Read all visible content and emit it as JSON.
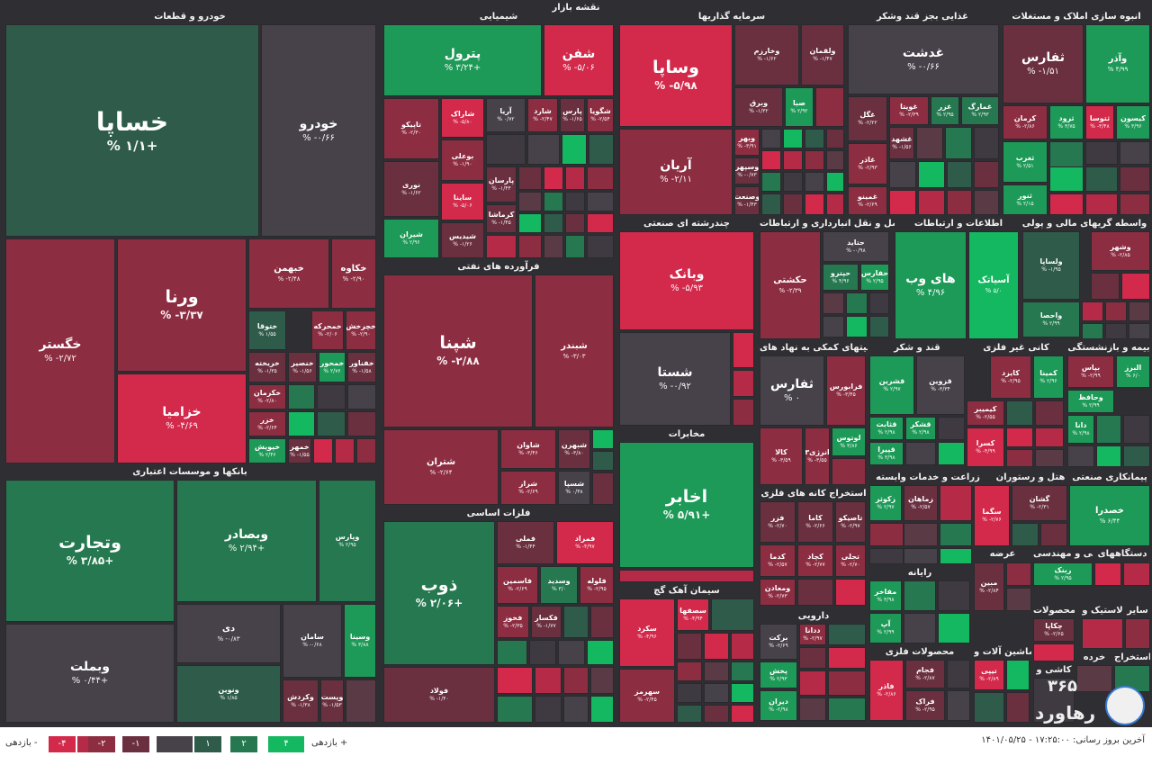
{
  "title": "نقشه بازار",
  "colors": {
    "neg4": "#d3294b",
    "neg3": "#b52a46",
    "neg2": "#8d2d42",
    "neg1": "#6a3040",
    "zero": "#47424a",
    "pos1": "#2f5c4a",
    "pos2": "#25784f",
    "pos3": "#1e9a58",
    "pos4": "#14b860",
    "background": "#2f2f33"
  },
  "sectors": [
    "خودرو و قطعات",
    "شیمیایی",
    "سرمایه گذاریها",
    "غذایی بجز قند وشکر",
    "انبوه سازی املاک و مستغلات",
    "فرآورده های نفتی",
    "چندرشته ای صنعتی",
    "حمل و نقل انبارداری و ارتباطات",
    "اطلاعات و ارتباطات",
    "واسطه گریهای مالی و پولی",
    "بانکها و موسسات اعتباری",
    "فلزات اساسی",
    "مخابرات",
    "فعالیتهای کمکی به نهاد های",
    "قند و شکر",
    "کانی غیر فلزی",
    "بیمه و بازنشستگی",
    "سیمان آهک گچ",
    "استخراج کانه های فلزی",
    "زراعت و خدمات وابسته",
    "هتل و رستوران",
    "پیمانکاری صنعتی",
    "عرضه",
    "فنی و مهندسی",
    "دستگاههای",
    "رایانه",
    "دارویی",
    "محصولات فلزی",
    "ماشین آلات و",
    "محصولات",
    "لاستیک و",
    "کاشی و",
    "خرده",
    "استخراج",
    "سایر"
  ],
  "tiles": [
    {
      "symbol": "خساپا",
      "pct": "% ۱/۱+",
      "color": "pos1"
    },
    {
      "symbol": "خودرو",
      "pct": "% -۰/۶۶",
      "color": "zero"
    },
    {
      "symbol": "خگستر",
      "pct": "% -۲/۷۲",
      "color": "neg2"
    },
    {
      "symbol": "ورنا",
      "pct": "% -۳/۳۷",
      "color": "neg2"
    },
    {
      "symbol": "خزامیا",
      "pct": "% -۴/۶۹",
      "color": "neg4"
    },
    {
      "symbol": "خبهمن",
      "pct": "% -۲/۴۸",
      "color": "neg2"
    },
    {
      "symbol": "خکاوه",
      "pct": "% -۲/۹۰",
      "color": "neg2"
    },
    {
      "symbol": "ختوقا",
      "pct": "% ۱/۵۵",
      "color": "pos1"
    },
    {
      "symbol": "خمحرکه",
      "pct": "% -۲/۰۶",
      "color": "neg2"
    },
    {
      "symbol": "خچرخش",
      "pct": "% -۲/۹۰",
      "color": "neg2"
    },
    {
      "symbol": "خریخته",
      "pct": "% -۱/۳۵",
      "color": "neg1"
    },
    {
      "symbol": "خنصیر",
      "pct": "% -۱/۵۶",
      "color": "neg1"
    },
    {
      "symbol": "خمحور",
      "pct": "% ۲/۷۶",
      "color": "pos3"
    },
    {
      "symbol": "خفناور",
      "pct": "% -۱/۵۸",
      "color": "neg1"
    },
    {
      "symbol": "خکرمان",
      "pct": "% -۲/۸۰",
      "color": "neg2"
    },
    {
      "symbol": "خزر",
      "pct": "% -۲/۶۴",
      "color": "neg2"
    },
    {
      "symbol": "خپویش",
      "pct": "% ۲/۴۶",
      "color": "pos3"
    },
    {
      "symbol": "خمهر",
      "pct": "% -۱/۵۵",
      "color": "neg1"
    },
    {
      "symbol": "پترول",
      "pct": "% ۳/۲۴+",
      "color": "pos3"
    },
    {
      "symbol": "شفن",
      "pct": "% -۵/۰۶",
      "color": "neg4"
    },
    {
      "symbol": "تاپیکو",
      "pct": "% -۲/۳۰",
      "color": "neg2"
    },
    {
      "symbol": "شاراک",
      "pct": "% -۵/۸۰",
      "color": "neg4"
    },
    {
      "symbol": "آریا",
      "pct": "% ۰/۷۲",
      "color": "zero"
    },
    {
      "symbol": "شارد",
      "pct": "% -۲/۴۷",
      "color": "neg2"
    },
    {
      "symbol": "پارس",
      "pct": "% -۱/۶۵",
      "color": "neg1"
    },
    {
      "symbol": "شگویا",
      "pct": "% -۲/۵۴",
      "color": "neg2"
    },
    {
      "symbol": "نوری",
      "pct": "% -۱/۶۲",
      "color": "neg1"
    },
    {
      "symbol": "بوعلی",
      "pct": "% -۱/۹۰",
      "color": "neg2"
    },
    {
      "symbol": "شیران",
      "pct": "% ۲/۹۶",
      "color": "pos3"
    },
    {
      "symbol": "پارسان",
      "pct": "% -۱/۴۴",
      "color": "neg1"
    },
    {
      "symbol": "ساینا",
      "pct": "% -۵/۰۶",
      "color": "neg4"
    },
    {
      "symbol": "کرماشا",
      "pct": "% -۱/۴۵",
      "color": "neg1"
    },
    {
      "symbol": "شیدیس",
      "pct": "% -۱/۲۶",
      "color": "neg1"
    },
    {
      "symbol": "وساپا",
      "pct": "% -۵/۹۸",
      "color": "neg4"
    },
    {
      "symbol": "وخارزم",
      "pct": "% -۱/۶۲",
      "color": "neg1"
    },
    {
      "symbol": "وبرق",
      "pct": "% -۱/۳۲",
      "color": "neg1"
    },
    {
      "symbol": "آریان",
      "pct": "% -۲/۱۱",
      "color": "neg2"
    },
    {
      "symbol": "صبا",
      "pct": "% ۲/۹۲",
      "color": "pos3"
    },
    {
      "symbol": "ولقمان",
      "pct": "% -۱/۴۷",
      "color": "neg1"
    },
    {
      "symbol": "وبهر",
      "pct": "% -۳/۹۱",
      "color": "neg2"
    },
    {
      "symbol": "وسپهر",
      "pct": "% -۰/۷۳",
      "color": "neg1"
    },
    {
      "symbol": "وصنعت",
      "pct": "% -۱/۴۳",
      "color": "neg1"
    },
    {
      "symbol": "غدشت",
      "pct": "% -۰/۶۶",
      "color": "zero"
    },
    {
      "symbol": "غگل",
      "pct": "% -۲/۲۲",
      "color": "neg1"
    },
    {
      "symbol": "غویتا",
      "pct": "% -۲/۳۹",
      "color": "neg2"
    },
    {
      "symbol": "غزر",
      "pct": "% ۲/۹۵",
      "color": "pos2"
    },
    {
      "symbol": "غمارگ",
      "pct": "% ۲/۹۳",
      "color": "pos2"
    },
    {
      "symbol": "غشهد",
      "pct": "% -۱/۵۶",
      "color": "neg1"
    },
    {
      "symbol": "غاذر",
      "pct": "% -۲/۹۳",
      "color": "neg2"
    },
    {
      "symbol": "غمینو",
      "pct": "% -۲/۶۹",
      "color": "neg2"
    },
    {
      "symbol": "ثفارس",
      "pct": "% -۱/۵۱",
      "color": "neg1"
    },
    {
      "symbol": "وآذر",
      "pct": "% ۴/۹۹",
      "color": "pos3"
    },
    {
      "symbol": "ثرود",
      "pct": "% ۳/۷۵",
      "color": "pos3"
    },
    {
      "symbol": "کرمان",
      "pct": "% -۲/۸۶",
      "color": "neg2"
    },
    {
      "symbol": "ثتوسا",
      "pct": "% -۳/۴۸",
      "color": "neg4"
    },
    {
      "symbol": "کیسون",
      "pct": "% ۳/۹۶",
      "color": "pos3"
    },
    {
      "symbol": "ثغرب",
      "pct": "% ۲/۵۱",
      "color": "pos3"
    },
    {
      "symbol": "ثنور",
      "pct": "% ۲/۱۵",
      "color": "pos3"
    },
    {
      "symbol": "شپنا",
      "pct": "% -۲/۸۸",
      "color": "neg2"
    },
    {
      "symbol": "شبندر",
      "pct": "% -۳/۰۳",
      "color": "neg2"
    },
    {
      "symbol": "شتران",
      "pct": "% -۲/۶۴",
      "color": "neg2"
    },
    {
      "symbol": "شاوان",
      "pct": "% -۳/۴۶",
      "color": "neg2"
    },
    {
      "symbol": "شبهرن",
      "pct": "% -۳/۸۰",
      "color": "neg1"
    },
    {
      "symbol": "شراز",
      "pct": "% -۲/۶۹",
      "color": "neg2"
    },
    {
      "symbol": "شسپا",
      "pct": "% ۰/۴۸",
      "color": "zero"
    },
    {
      "symbol": "وبانک",
      "pct": "% -۵/۹۳",
      "color": "neg4"
    },
    {
      "symbol": "شستا",
      "pct": "% -۰/۹۲",
      "color": "zero"
    },
    {
      "symbol": "حکشتی",
      "pct": "% -۲/۳۹",
      "color": "neg2"
    },
    {
      "symbol": "حتاید",
      "pct": "% -۰/۹۸",
      "color": "zero"
    },
    {
      "symbol": "حپترو",
      "pct": "% ۴/۹۶",
      "color": "pos2"
    },
    {
      "symbol": "حفارس",
      "pct": "% ۲/۹۵",
      "color": "pos3"
    },
    {
      "symbol": "های وب",
      "pct": "% ۴/۹۶",
      "color": "pos3"
    },
    {
      "symbol": "آسیاتک",
      "pct": "% ۵/۰",
      "color": "pos4"
    },
    {
      "symbol": "وشهر",
      "pct": "% -۲/۸۵",
      "color": "neg2"
    },
    {
      "symbol": "ولساپا",
      "pct": "% -۱/۹۵",
      "color": "pos1"
    },
    {
      "symbol": "واحصا",
      "pct": "% ۲/۹۹",
      "color": "pos2"
    },
    {
      "symbol": "وتجارت",
      "pct": "% ۳/۸۵+",
      "color": "pos2"
    },
    {
      "symbol": "وبصادر",
      "pct": "% ۲/۹۴+",
      "color": "pos2"
    },
    {
      "symbol": "وپارس",
      "pct": "% ۲/۹۵",
      "color": "pos2"
    },
    {
      "symbol": "دی",
      "pct": "% -۰/۸۳",
      "color": "zero"
    },
    {
      "symbol": "سامان",
      "pct": "% -۰/۶۸",
      "color": "zero"
    },
    {
      "symbol": "وبملت",
      "pct": "% ۰/۴۴+",
      "color": "zero"
    },
    {
      "symbol": "ونوین",
      "pct": "% ۱/۸۵",
      "color": "pos1"
    },
    {
      "symbol": "وسینا",
      "pct": "% ۳/۸۸",
      "color": "pos3"
    },
    {
      "symbol": "وکردش",
      "pct": "% -۱/۳۸",
      "color": "neg1"
    },
    {
      "symbol": "وپست",
      "pct": "% -۱/۵۳",
      "color": "neg1"
    },
    {
      "symbol": "ذوب",
      "pct": "% ۲/۰۶+",
      "color": "pos2"
    },
    {
      "symbol": "فملی",
      "pct": "% -۱/۴۴",
      "color": "neg1"
    },
    {
      "symbol": "فمراد",
      "pct": "% -۴/۹۷",
      "color": "neg4"
    },
    {
      "symbol": "فاسمین",
      "pct": "% -۲/۶۹",
      "color": "neg2"
    },
    {
      "symbol": "وسدید",
      "pct": "% ۳/۰",
      "color": "pos2"
    },
    {
      "symbol": "فلوله",
      "pct": "% -۲/۹۵",
      "color": "neg2"
    },
    {
      "symbol": "فخوز",
      "pct": "% -۲/۳۵",
      "color": "neg2"
    },
    {
      "symbol": "فکسار",
      "pct": "% -۱/۷۷",
      "color": "neg1"
    },
    {
      "symbol": "فولاد",
      "pct": "% -۱/۴۰",
      "color": "neg1"
    },
    {
      "symbol": "اخابر",
      "pct": "% ۵/۹۱+",
      "color": "pos3"
    },
    {
      "symbol": "سکرد",
      "pct": "% -۴/۹۶",
      "color": "neg4"
    },
    {
      "symbol": "سصفها",
      "pct": "% -۴/۹۴",
      "color": "neg4"
    },
    {
      "symbol": "سهرمز",
      "pct": "% -۲/۴۵",
      "color": "neg2"
    },
    {
      "symbol": "ثفارس",
      "pct": "% ۰",
      "color": "zero"
    },
    {
      "symbol": "فرابورس",
      "pct": "% -۳/۴۵",
      "color": "neg2"
    },
    {
      "symbol": "کالا",
      "pct": "% -۳/۵۹",
      "color": "neg2"
    },
    {
      "symbol": "انرژی۳",
      "pct": "% -۳/۵۵",
      "color": "neg2"
    },
    {
      "symbol": "لوتوس",
      "pct": "% ۳/۸۶",
      "color": "pos3"
    },
    {
      "symbol": "قشرین",
      "pct": "% ۲/۹۷",
      "color": "pos3"
    },
    {
      "symbol": "قزوین",
      "pct": "% -۳/۳۴",
      "color": "zero"
    },
    {
      "symbol": "قثابت",
      "pct": "% ۲/۹۸",
      "color": "pos3"
    },
    {
      "symbol": "قپیرا",
      "pct": "% ۳/۹۸",
      "color": "pos3"
    },
    {
      "symbol": "قشکر",
      "pct": "% ۲/۹۸",
      "color": "pos3"
    },
    {
      "symbol": "کایزد",
      "pct": "% -۲/۹۵",
      "color": "neg2"
    },
    {
      "symbol": "کمینا",
      "pct": "% ۲/۹۶",
      "color": "pos3"
    },
    {
      "symbol": "کیمیبر",
      "pct": "% -۲/۵۵",
      "color": "neg2"
    },
    {
      "symbol": "کسرا",
      "pct": "% -۴/۹۹",
      "color": "neg4"
    },
    {
      "symbol": "بپاس",
      "pct": "% -۲/۹۹",
      "color": "neg2"
    },
    {
      "symbol": "البرز",
      "pct": "% ۶/۰",
      "color": "pos3"
    },
    {
      "symbol": "وحافظ",
      "pct": "% ۲/۹۹",
      "color": "pos3"
    },
    {
      "symbol": "دانا",
      "pct": "% ۲/۹۸",
      "color": "pos3"
    },
    {
      "symbol": "فزر",
      "pct": "% -۲/۷۰",
      "color": "neg1"
    },
    {
      "symbol": "کاما",
      "pct": "% -۲/۶۶",
      "color": "neg1"
    },
    {
      "symbol": "تاصیکو",
      "pct": "% -۲/۹۷",
      "color": "neg1"
    },
    {
      "symbol": "کدما",
      "pct": "% -۲/۵۷",
      "color": "neg2"
    },
    {
      "symbol": "کچاد",
      "pct": "% -۲/۷۷",
      "color": "neg2"
    },
    {
      "symbol": "تجلی",
      "pct": "% -۲/۷۰",
      "color": "neg2"
    },
    {
      "symbol": "ومعادن",
      "pct": "% -۲/۷۳",
      "color": "neg2"
    },
    {
      "symbol": "زکوثر",
      "pct": "% ۲/۹۷",
      "color": "pos3"
    },
    {
      "symbol": "زماهان",
      "pct": "% -۲/۵۷",
      "color": "neg1"
    },
    {
      "symbol": "سگما",
      "pct": "% -۲/۷۶",
      "color": "neg4"
    },
    {
      "symbol": "گشان",
      "pct": "% -۲/۳۱",
      "color": "neg1"
    },
    {
      "symbol": "خصدرا",
      "pct": "% ۶/۴۴",
      "color": "pos3"
    },
    {
      "symbol": "ربنک",
      "pct": "% ۲/۹۵",
      "color": "pos3"
    },
    {
      "symbol": "مبین",
      "pct": "% -۲/۸۴",
      "color": "neg1"
    },
    {
      "symbol": "مفاخر",
      "pct": "% ۳/۹۸",
      "color": "pos3"
    },
    {
      "symbol": "آپ",
      "pct": "% ۲/۹۹",
      "color": "pos3"
    },
    {
      "symbol": "برکت",
      "pct": "% -۲/۶۹",
      "color": "zero"
    },
    {
      "symbol": "ددانا",
      "pct": "% -۲/۹۷",
      "color": "neg2"
    },
    {
      "symbol": "پخش",
      "pct": "% ۲/۹۳",
      "color": "pos3"
    },
    {
      "symbol": "دیران",
      "pct": "% -۲/۹۸",
      "color": "pos3"
    },
    {
      "symbol": "فجام",
      "pct": "% -۲/۸۷",
      "color": "neg1"
    },
    {
      "symbol": "فاذر",
      "pct": "% -۲/۸۶",
      "color": "neg4"
    },
    {
      "symbol": "فراک",
      "pct": "% -۲/۹۵",
      "color": "neg1"
    },
    {
      "symbol": "تیپی",
      "pct": "% -۲/۸۹",
      "color": "neg4"
    },
    {
      "symbol": "چکاپا",
      "pct": "% -۲/۶۵",
      "color": "neg1"
    }
  ],
  "legend": {
    "decrease_label": "بازدهی -",
    "increase_label": "بازدهی +",
    "steps": [
      "-۴",
      "-۲",
      "-۱",
      "",
      "۱",
      "۲",
      "۴"
    ]
  },
  "last_update": "آخرین بروز رسانی: ۱۷:۲۵:۰۰ - ۱۴۰۱/۰۵/۲۵",
  "logo": {
    "number": "۳۶۵",
    "text": "رهاورد"
  }
}
